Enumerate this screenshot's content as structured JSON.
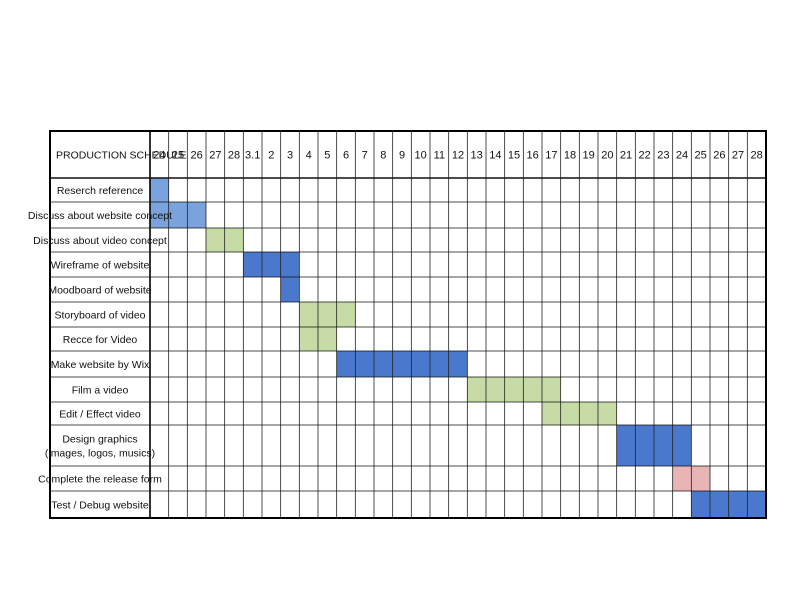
{
  "chart_data": {
    "type": "gantt",
    "title": "PRODUCTION SCHEDULE",
    "days": [
      "24",
      "25",
      "26",
      "27",
      "28",
      "3.1",
      "2",
      "3",
      "4",
      "5",
      "6",
      "7",
      "8",
      "9",
      "10",
      "11",
      "12",
      "13",
      "14",
      "15",
      "16",
      "17",
      "18",
      "19",
      "20",
      "21",
      "22",
      "23",
      "24",
      "25",
      "26",
      "27",
      "28"
    ],
    "colors": {
      "light_blue": "#7aa3dd",
      "blue": "#4a78cc",
      "green": "#c6dba5",
      "pink": "#e8b4b4"
    },
    "tasks": [
      {
        "label": [
          "Reserch reference"
        ],
        "start": "24",
        "end": "24",
        "color": "light_blue"
      },
      {
        "label": [
          "Discuss about website concept"
        ],
        "start": "24",
        "end": "26",
        "color": "light_blue"
      },
      {
        "label": [
          "Discuss about video concept"
        ],
        "start": "27",
        "end": "28",
        "color": "green"
      },
      {
        "label": [
          "Wireframe of website"
        ],
        "start": "3.1",
        "end": "3",
        "color": "blue"
      },
      {
        "label": [
          "Moodboard of website"
        ],
        "start": "3",
        "end": "3",
        "color": "blue"
      },
      {
        "label": [
          "Storyboard of video"
        ],
        "start": "4",
        "end": "6",
        "color": "green"
      },
      {
        "label": [
          "Recce for Video"
        ],
        "start": "4",
        "end": "5",
        "color": "green"
      },
      {
        "label": [
          "Make website by Wix"
        ],
        "start": "6",
        "end": "12",
        "color": "blue"
      },
      {
        "label": [
          "Film a video"
        ],
        "start": "13",
        "end": "17",
        "color": "green"
      },
      {
        "label": [
          "Edit / Effect video"
        ],
        "start": "17",
        "end": "20",
        "color": "green"
      },
      {
        "label": [
          "Design graphics",
          "(images, logos, musics)"
        ],
        "start": "21",
        "end": "24",
        "color": "blue"
      },
      {
        "label": [
          "Complete the release form"
        ],
        "start": "24",
        "end": "25",
        "color": "pink"
      },
      {
        "label": [
          "Test / Debug website"
        ],
        "start": "25",
        "end": "28",
        "color": "blue"
      }
    ],
    "task_spans": [
      [
        0,
        0
      ],
      [
        0,
        2
      ],
      [
        3,
        4
      ],
      [
        5,
        7
      ],
      [
        7,
        7
      ],
      [
        8,
        10
      ],
      [
        8,
        9
      ],
      [
        10,
        16
      ],
      [
        17,
        21
      ],
      [
        21,
        24
      ],
      [
        25,
        28
      ],
      [
        28,
        29
      ],
      [
        29,
        32
      ]
    ]
  }
}
